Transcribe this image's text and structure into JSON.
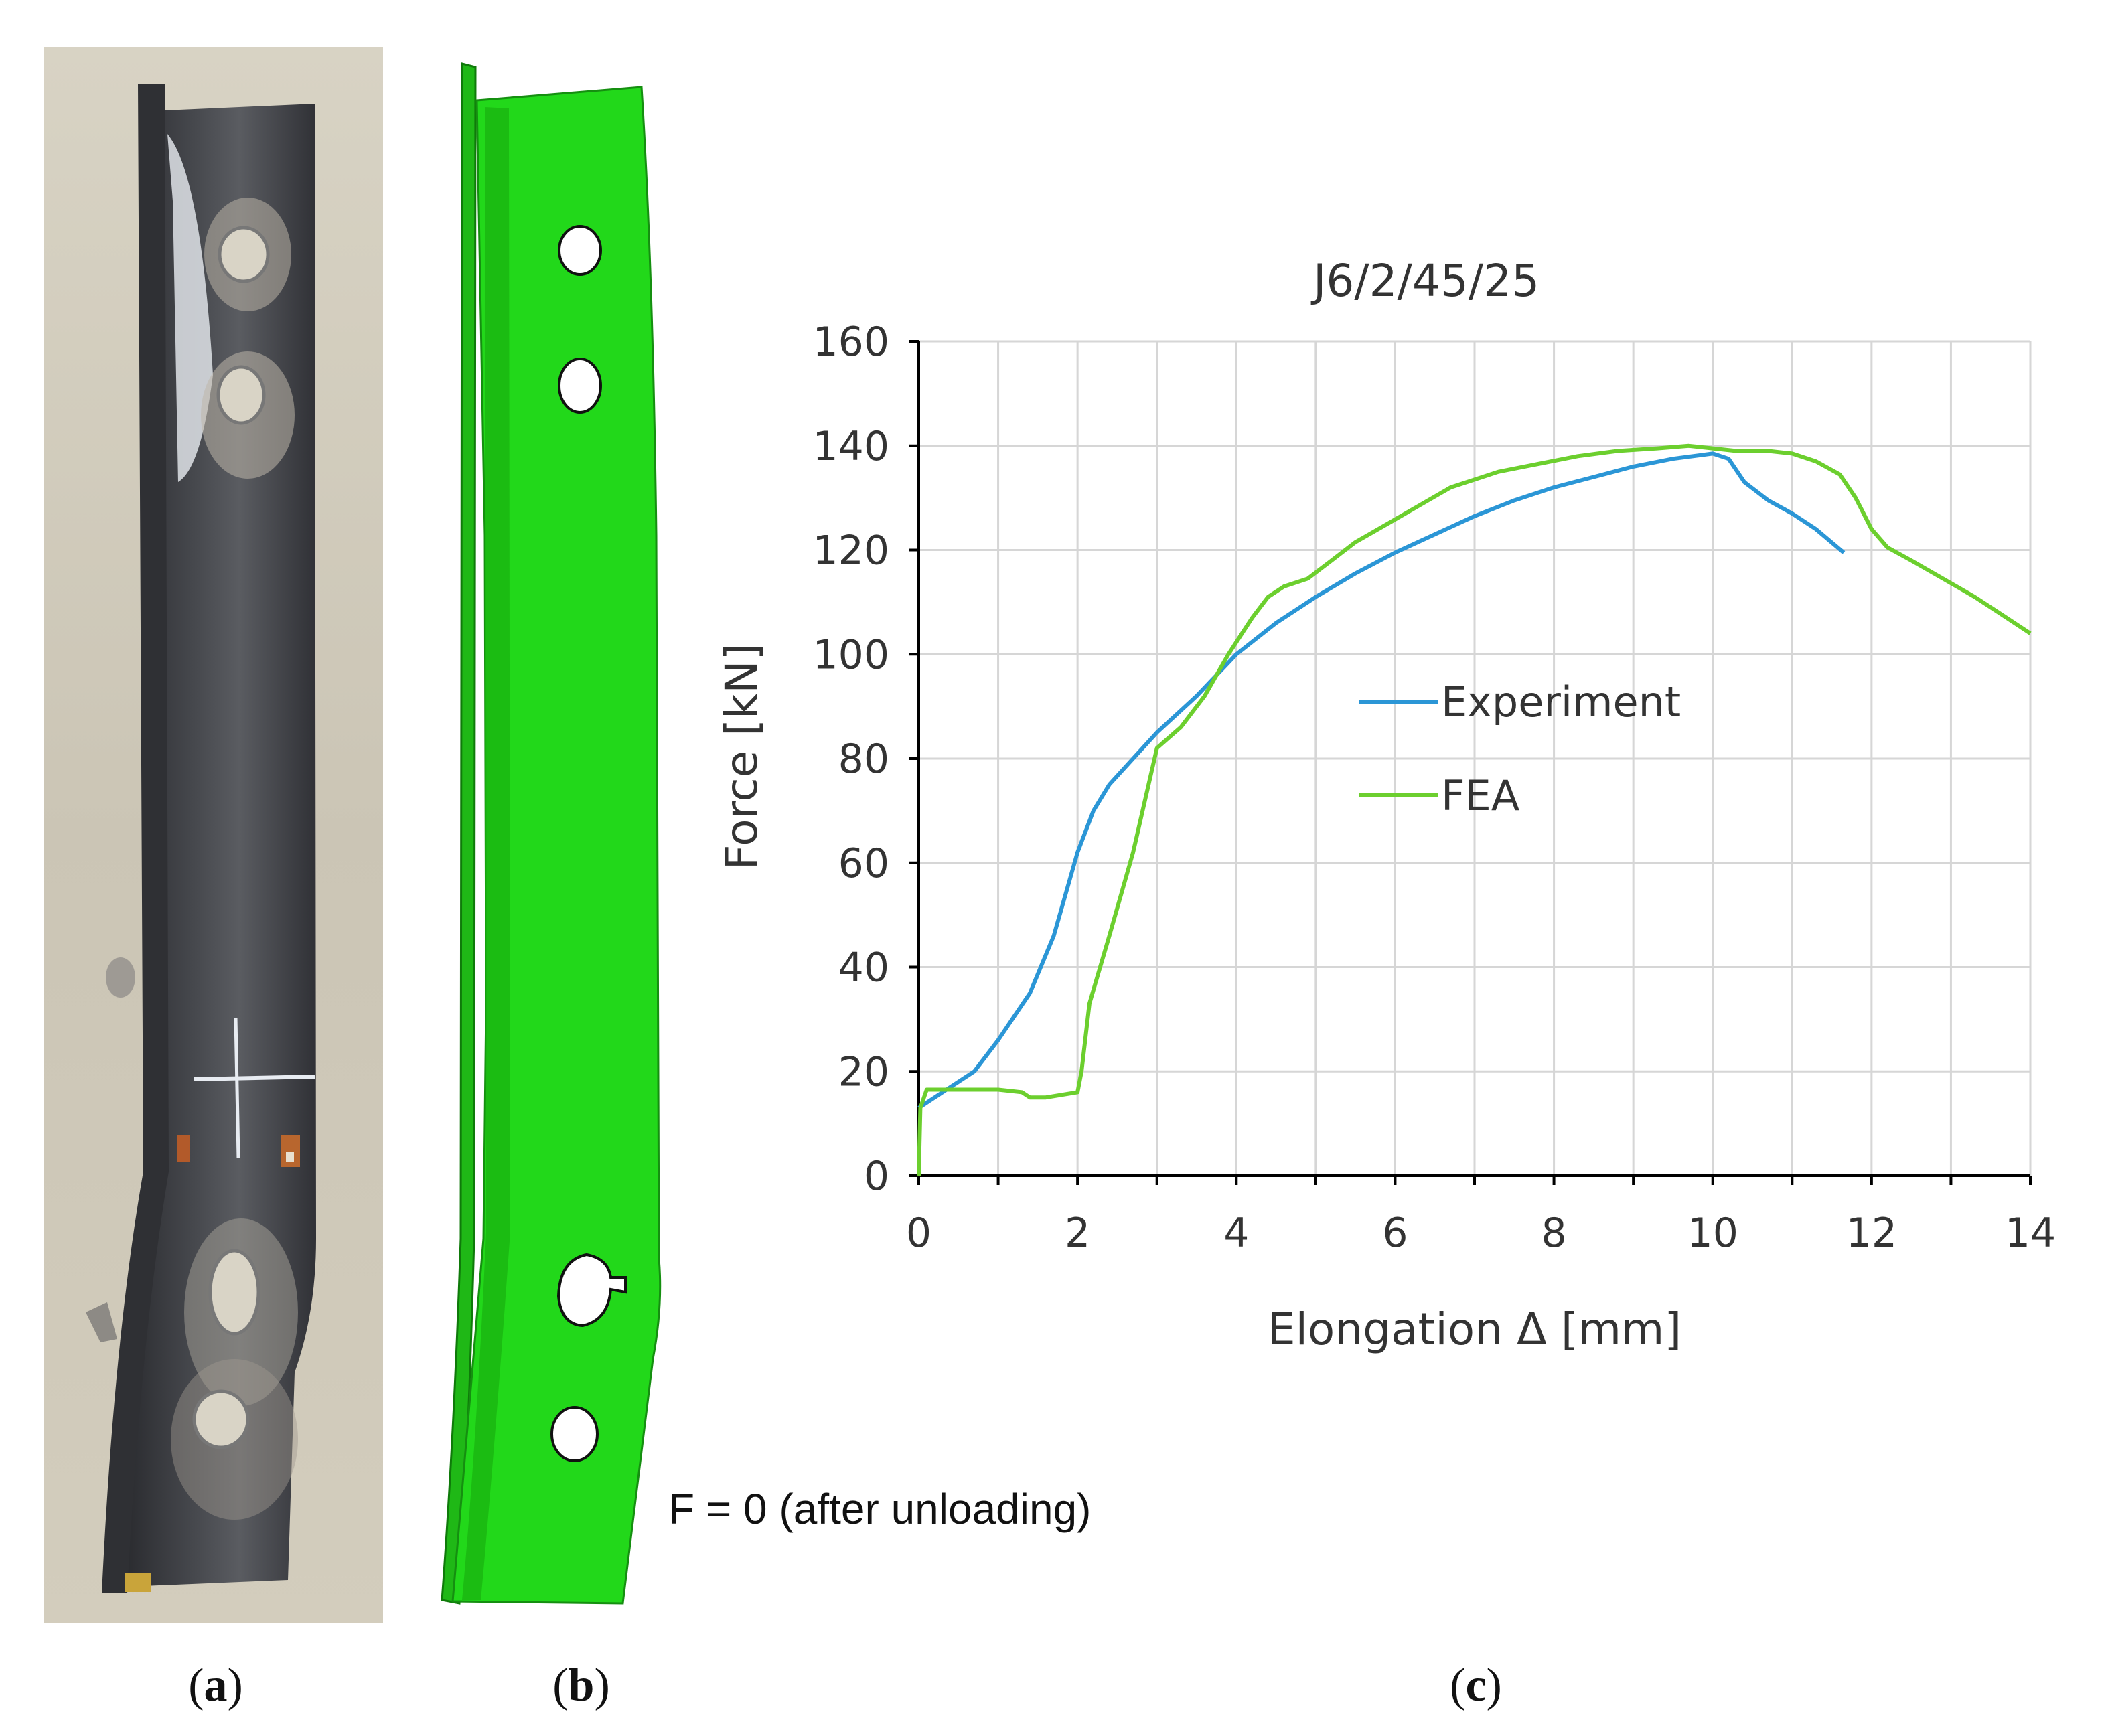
{
  "panels": {
    "a": {
      "caption_open": "(",
      "caption_letter": "a",
      "caption_close": ")"
    },
    "b": {
      "caption_open": "(",
      "caption_letter": "b",
      "caption_close": ")",
      "note": "F = 0 (after unloading)"
    },
    "c": {
      "caption_open": "(",
      "caption_letter": "c",
      "caption_close": ")"
    }
  },
  "colors": {
    "experiment": "#2b96d6",
    "fea": "#6ccf2e",
    "gridline": "#d6d6d6",
    "axis": "#000000",
    "green_model": "#22d81a",
    "photo_bg": "#cfc9b9",
    "steel": "#3b3c40"
  },
  "chart_data": {
    "type": "line",
    "title": "J6/2/45/25",
    "xlabel": "Elongation Δ [mm]",
    "ylabel": "Force [kN]",
    "xlim": [
      0,
      14
    ],
    "ylim": [
      0,
      160
    ],
    "xticks": [
      "0",
      "2",
      "4",
      "6",
      "8",
      "10",
      "12",
      "14"
    ],
    "yticks": [
      "0",
      "20",
      "40",
      "60",
      "80",
      "100",
      "120",
      "140",
      "160"
    ],
    "grid": true,
    "legend_position": "center",
    "series": [
      {
        "name": "Experiment",
        "color": "#2b96d6",
        "points": [
          [
            0.0,
            13.0
          ],
          [
            0.3,
            16.0
          ],
          [
            0.7,
            20.0
          ],
          [
            1.0,
            26.0
          ],
          [
            1.4,
            35.0
          ],
          [
            1.7,
            46.0
          ],
          [
            2.0,
            62.0
          ],
          [
            2.2,
            70.0
          ],
          [
            2.4,
            75.0
          ],
          [
            2.7,
            80.0
          ],
          [
            3.0,
            85.0
          ],
          [
            3.5,
            92.0
          ],
          [
            4.0,
            100.0
          ],
          [
            4.5,
            106.0
          ],
          [
            5.0,
            111.0
          ],
          [
            5.5,
            115.5
          ],
          [
            6.0,
            119.5
          ],
          [
            6.5,
            123.0
          ],
          [
            7.0,
            126.5
          ],
          [
            7.5,
            129.5
          ],
          [
            8.0,
            132.0
          ],
          [
            8.5,
            134.0
          ],
          [
            9.0,
            136.0
          ],
          [
            9.5,
            137.5
          ],
          [
            10.0,
            138.5
          ],
          [
            10.2,
            137.5
          ],
          [
            10.4,
            133.0
          ],
          [
            10.7,
            129.5
          ],
          [
            11.0,
            127.0
          ],
          [
            11.3,
            124.0
          ],
          [
            11.65,
            119.5
          ]
        ]
      },
      {
        "name": "FEA",
        "color": "#6ccf2e",
        "points": [
          [
            0.0,
            0.0
          ],
          [
            0.02,
            13.0
          ],
          [
            0.1,
            16.5
          ],
          [
            0.5,
            16.5
          ],
          [
            1.0,
            16.5
          ],
          [
            1.3,
            16.0
          ],
          [
            1.4,
            15.0
          ],
          [
            1.6,
            15.0
          ],
          [
            1.8,
            15.5
          ],
          [
            2.0,
            16.0
          ],
          [
            2.05,
            20.0
          ],
          [
            2.15,
            33.0
          ],
          [
            2.4,
            46.0
          ],
          [
            2.7,
            62.0
          ],
          [
            3.0,
            82.0
          ],
          [
            3.3,
            86.0
          ],
          [
            3.6,
            92.0
          ],
          [
            3.9,
            100.0
          ],
          [
            4.2,
            107.0
          ],
          [
            4.4,
            111.0
          ],
          [
            4.6,
            113.0
          ],
          [
            4.9,
            114.5
          ],
          [
            5.2,
            118.0
          ],
          [
            5.5,
            121.5
          ],
          [
            5.9,
            125.0
          ],
          [
            6.3,
            128.5
          ],
          [
            6.7,
            132.0
          ],
          [
            7.0,
            133.5
          ],
          [
            7.3,
            135.0
          ],
          [
            7.8,
            136.5
          ],
          [
            8.3,
            138.0
          ],
          [
            8.8,
            139.0
          ],
          [
            9.3,
            139.5
          ],
          [
            9.7,
            140.0
          ],
          [
            10.0,
            139.5
          ],
          [
            10.3,
            139.0
          ],
          [
            10.7,
            139.0
          ],
          [
            11.0,
            138.5
          ],
          [
            11.3,
            137.0
          ],
          [
            11.6,
            134.5
          ],
          [
            11.8,
            130.0
          ],
          [
            12.0,
            124.0
          ],
          [
            12.2,
            120.5
          ],
          [
            12.5,
            118.0
          ],
          [
            12.9,
            114.5
          ],
          [
            13.3,
            111.0
          ],
          [
            13.6,
            108.0
          ],
          [
            14.0,
            104.0
          ]
        ]
      }
    ]
  }
}
